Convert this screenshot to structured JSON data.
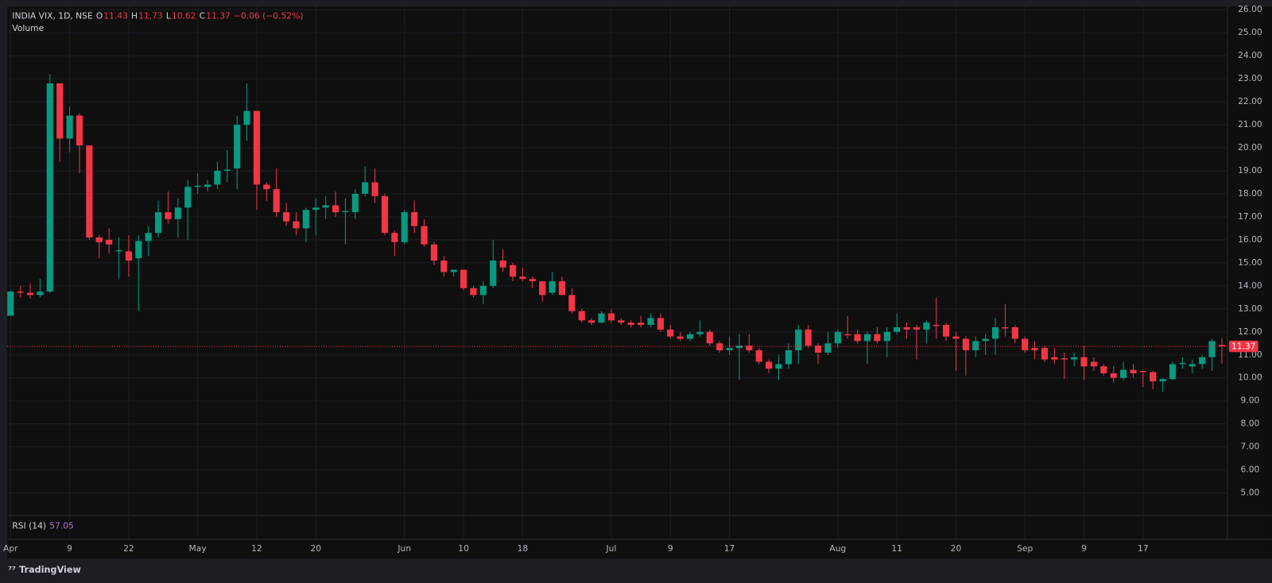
{
  "chart_data": {
    "type": "candlestick",
    "title": "INDIA VIX, 1D, NSE",
    "ohlc_labels": [
      "O",
      "H",
      "L",
      "C"
    ],
    "change_label": "−0.06 (−0.52%)",
    "volume_label": "Volume",
    "rsi": {
      "name": "RSI (14)",
      "value": 57.05
    },
    "up_color": "#089981",
    "down_color": "#f23645",
    "grid": true,
    "ylim": [
      4.01,
      26.14
    ],
    "yticks": [
      {
        "value": 5,
        "label": "5.00"
      },
      {
        "value": 6,
        "label": "6.00"
      },
      {
        "value": 7,
        "label": "7.00"
      },
      {
        "value": 8,
        "label": "8.00"
      },
      {
        "value": 9,
        "label": "9.00"
      },
      {
        "value": 10,
        "label": "10.00"
      },
      {
        "value": 11,
        "label": "11.00"
      },
      {
        "value": 12,
        "label": "12.00"
      },
      {
        "value": 13,
        "label": "13.00"
      },
      {
        "value": 14,
        "label": "14.00"
      },
      {
        "value": 15,
        "label": "15.00"
      },
      {
        "value": 16,
        "label": "16.00"
      },
      {
        "value": 17,
        "label": "17.00"
      },
      {
        "value": 18,
        "label": "18.00"
      },
      {
        "value": 19,
        "label": "19.00"
      },
      {
        "value": 20,
        "label": "20.00"
      },
      {
        "value": 21,
        "label": "21.00"
      },
      {
        "value": 22,
        "label": "22.00"
      },
      {
        "value": 23,
        "label": "23.00"
      },
      {
        "value": 24,
        "label": "24.00"
      },
      {
        "value": 25,
        "label": "25.00"
      },
      {
        "value": 26,
        "label": "26.00"
      }
    ],
    "categories": [
      "Apr",
      null,
      null,
      null,
      null,
      null,
      "9",
      null,
      null,
      null,
      null,
      null,
      "22",
      null,
      null,
      null,
      null,
      null,
      null,
      "May",
      null,
      null,
      null,
      null,
      null,
      "12",
      null,
      null,
      null,
      null,
      null,
      "20",
      null,
      null,
      null,
      null,
      null,
      null,
      null,
      null,
      "Jun",
      null,
      null,
      null,
      null,
      null,
      "10",
      null,
      null,
      null,
      null,
      null,
      "18",
      null,
      null,
      null,
      null,
      null,
      null,
      null,
      null,
      "Jul",
      null,
      null,
      null,
      null,
      null,
      "9",
      null,
      null,
      null,
      null,
      null,
      "17",
      null,
      null,
      null,
      null,
      null,
      null,
      null,
      null,
      null,
      null,
      "Aug",
      null,
      null,
      null,
      null,
      null,
      "11",
      null,
      null,
      null,
      null,
      null,
      "20",
      null,
      null,
      null,
      null,
      null,
      null,
      "Sep",
      null,
      null,
      null,
      null,
      null,
      "9",
      null,
      null,
      null,
      null,
      null,
      "17",
      null,
      null,
      null,
      null,
      null,
      null,
      null,
      null
    ],
    "open": [
      12.7,
      13.75,
      13.7,
      13.6,
      13.75,
      22.8,
      20.4,
      21.4,
      20.1,
      16.1,
      16.0,
      15.5,
      15.5,
      15.2,
      15.95,
      16.3,
      17.2,
      16.9,
      17.4,
      18.3,
      18.3,
      18.4,
      19.0,
      19.1,
      21.0,
      21.6,
      18.4,
      18.2,
      17.2,
      16.8,
      16.5,
      17.3,
      17.4,
      17.5,
      17.2,
      17.2,
      18.0,
      18.5,
      17.9,
      16.3,
      15.9,
      17.2,
      16.6,
      15.8,
      15.1,
      14.6,
      14.7,
      13.9,
      13.6,
      14.0,
      15.1,
      14.9,
      14.4,
      14.3,
      14.2,
      13.7,
      14.2,
      13.6,
      12.9,
      12.5,
      12.4,
      12.8,
      12.5,
      12.4,
      12.4,
      12.3,
      12.6,
      12.1,
      11.8,
      11.7,
      11.9,
      12.0,
      11.5,
      11.2,
      11.3,
      11.4,
      11.2,
      10.7,
      10.4,
      10.6,
      11.2,
      12.1,
      11.4,
      11.1,
      11.5,
      11.9,
      11.9,
      11.6,
      11.9,
      11.6,
      12.0,
      12.2,
      12.2,
      12.1,
      12.3,
      12.3,
      11.8,
      11.7,
      11.2,
      11.6,
      11.7,
      12.2,
      12.2,
      11.7,
      11.3,
      11.3,
      10.9,
      10.85,
      10.8,
      10.9,
      10.7,
      10.5,
      10.2,
      10.0,
      10.35,
      10.3,
      10.25,
      9.85,
      9.95,
      10.6,
      10.5,
      10.6,
      10.9,
      11.43
    ],
    "high": [
      13.8,
      14.0,
      14.1,
      14.3,
      23.2,
      22.8,
      21.8,
      21.5,
      20.1,
      16.2,
      16.5,
      16.1,
      16.2,
      16.2,
      16.6,
      17.7,
      18.1,
      17.8,
      18.6,
      18.9,
      18.6,
      19.4,
      19.9,
      21.4,
      22.8,
      21.6,
      18.5,
      19.1,
      17.6,
      17.2,
      17.4,
      17.8,
      17.9,
      18.1,
      17.8,
      18.2,
      19.2,
      19.1,
      18.0,
      16.4,
      17.3,
      17.7,
      16.9,
      15.9,
      15.3,
      14.7,
      14.7,
      14.0,
      14.2,
      16.0,
      15.6,
      15.0,
      14.8,
      14.4,
      14.2,
      14.6,
      14.4,
      13.9,
      13.0,
      12.6,
      12.9,
      13.0,
      12.6,
      12.5,
      12.7,
      12.8,
      12.8,
      12.3,
      12.0,
      12.0,
      12.5,
      12.1,
      11.6,
      11.8,
      11.9,
      11.9,
      11.3,
      10.8,
      11.0,
      11.5,
      12.3,
      12.3,
      11.5,
      12.0,
      12.1,
      12.7,
      12.1,
      12.0,
      12.2,
      12.2,
      12.8,
      12.4,
      12.3,
      12.5,
      13.5,
      12.4,
      12.0,
      11.8,
      11.8,
      11.9,
      12.6,
      13.2,
      12.3,
      11.8,
      11.6,
      11.4,
      11.3,
      11.1,
      11.1,
      11.4,
      10.9,
      10.6,
      10.5,
      10.7,
      10.6,
      10.3,
      10.3,
      10.0,
      10.7,
      10.9,
      10.8,
      11.0,
      11.7,
      11.73
    ],
    "low": [
      12.7,
      13.5,
      13.45,
      13.5,
      13.7,
      19.4,
      19.8,
      18.9,
      16.0,
      15.2,
      15.4,
      14.3,
      14.4,
      12.9,
      15.3,
      16.1,
      16.7,
      16.1,
      16.0,
      18.0,
      18.1,
      18.2,
      18.5,
      18.2,
      20.3,
      17.3,
      17.7,
      17.0,
      16.6,
      16.2,
      15.9,
      16.2,
      16.9,
      17.0,
      15.8,
      16.9,
      17.9,
      17.6,
      16.2,
      15.3,
      15.8,
      16.3,
      15.7,
      14.9,
      14.4,
      14.4,
      13.8,
      13.5,
      13.2,
      13.9,
      14.6,
      14.2,
      14.2,
      13.9,
      13.3,
      13.6,
      13.6,
      12.8,
      12.4,
      12.3,
      12.4,
      12.4,
      12.3,
      12.2,
      12.2,
      12.2,
      12.0,
      11.7,
      11.6,
      11.6,
      11.8,
      11.4,
      11.1,
      11.0,
      9.9,
      11.1,
      10.6,
      10.2,
      9.9,
      10.4,
      10.6,
      11.3,
      10.6,
      11.0,
      11.3,
      11.7,
      11.5,
      10.6,
      11.5,
      10.9,
      11.9,
      11.7,
      10.8,
      11.5,
      11.7,
      11.6,
      10.3,
      10.1,
      10.9,
      11.0,
      11.0,
      11.8,
      11.5,
      11.1,
      10.8,
      10.7,
      10.6,
      9.95,
      10.5,
      9.9,
      10.3,
      10.1,
      9.8,
      9.9,
      10.0,
      9.6,
      9.5,
      9.4,
      9.9,
      10.4,
      10.2,
      10.4,
      10.3,
      10.62
    ],
    "close": [
      13.75,
      13.7,
      13.6,
      13.75,
      22.8,
      20.4,
      21.4,
      20.1,
      16.1,
      15.9,
      15.8,
      15.55,
      15.1,
      15.95,
      16.3,
      17.2,
      16.9,
      17.4,
      18.3,
      18.35,
      18.4,
      19.0,
      19.05,
      21.0,
      21.6,
      18.4,
      18.2,
      17.2,
      16.8,
      16.5,
      17.3,
      17.4,
      17.5,
      17.2,
      17.25,
      18.0,
      18.5,
      17.9,
      16.3,
      15.9,
      17.2,
      16.6,
      15.8,
      15.1,
      14.6,
      14.7,
      13.9,
      13.6,
      14.0,
      15.1,
      14.8,
      14.4,
      14.3,
      14.2,
      13.6,
      14.2,
      13.6,
      12.9,
      12.5,
      12.4,
      12.8,
      12.5,
      12.4,
      12.3,
      12.3,
      12.6,
      12.1,
      11.8,
      11.7,
      11.9,
      12.0,
      11.5,
      11.2,
      11.3,
      11.4,
      11.2,
      10.7,
      10.4,
      10.6,
      11.2,
      12.1,
      11.4,
      11.1,
      11.5,
      12.0,
      11.85,
      11.6,
      11.9,
      11.6,
      12.0,
      12.2,
      12.1,
      12.1,
      12.4,
      12.25,
      11.8,
      11.7,
      11.2,
      11.6,
      11.7,
      12.2,
      12.15,
      11.7,
      11.2,
      11.2,
      10.8,
      10.8,
      10.8,
      10.9,
      10.5,
      10.5,
      10.2,
      10.0,
      10.35,
      10.2,
      10.25,
      9.85,
      9.95,
      10.6,
      10.65,
      10.6,
      10.9,
      11.6,
      11.37
    ]
  },
  "footer": {
    "brand": "TradingView"
  }
}
